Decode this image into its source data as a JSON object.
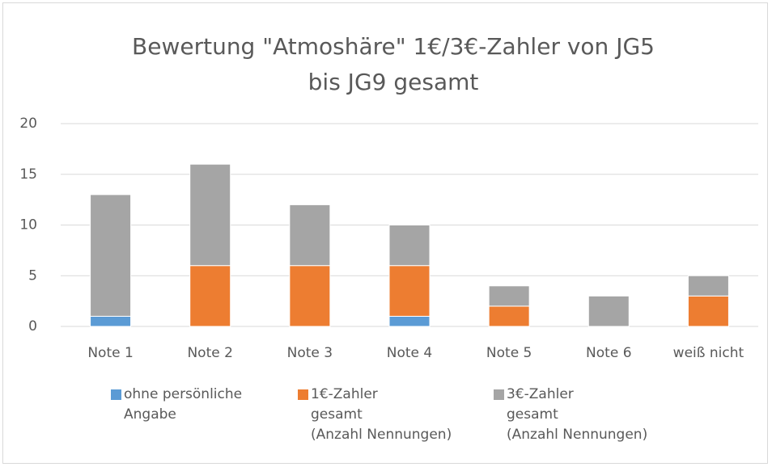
{
  "chart_data": {
    "type": "stacked_bar",
    "title": "Bewertung \"Atmoshäre\" 1€/3€-Zahler von JG5\nbis JG9 gesamt",
    "categories": [
      "Note 1",
      "Note 2",
      "Note 3",
      "Note 4",
      "Note 5",
      "Note 6",
      "weiß nicht"
    ],
    "series": [
      {
        "name": "ohne persönliche\nAngabe",
        "color": "#5b9bd5",
        "values": [
          1,
          0,
          0,
          1,
          0,
          0,
          0
        ]
      },
      {
        "name": "1€-Zahler\ngesamt\n(Anzahl Nennungen)",
        "color": "#ed7d31",
        "values": [
          0,
          6,
          6,
          5,
          2,
          0,
          3
        ]
      },
      {
        "name": "3€-Zahler\ngesamt\n(Anzahl Nennungen)",
        "color": "#a5a5a5",
        "values": [
          12,
          10,
          6,
          4,
          2,
          3,
          2
        ]
      }
    ],
    "ylim": [
      0,
      20
    ],
    "yticks": [
      0,
      5,
      10,
      15,
      20
    ],
    "grid": true,
    "legend": "bottom"
  }
}
